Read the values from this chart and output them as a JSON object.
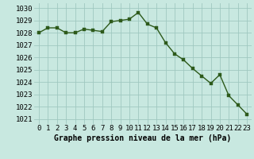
{
  "x": [
    0,
    1,
    2,
    3,
    4,
    5,
    6,
    7,
    8,
    9,
    10,
    11,
    12,
    13,
    14,
    15,
    16,
    17,
    18,
    19,
    20,
    21,
    22,
    23
  ],
  "y": [
    1028.0,
    1028.4,
    1028.4,
    1028.0,
    1028.0,
    1028.3,
    1028.2,
    1028.1,
    1028.9,
    1029.0,
    1029.1,
    1029.65,
    1028.7,
    1028.4,
    1027.2,
    1026.3,
    1025.8,
    1025.1,
    1024.5,
    1023.9,
    1024.6,
    1022.9,
    1022.15,
    1021.4
  ],
  "line_color": "#2d5a1b",
  "marker_color": "#2d5a1b",
  "bg_color": "#c8e8e0",
  "grid_color": "#a0c8c0",
  "ylabel_values": [
    1021,
    1022,
    1023,
    1024,
    1025,
    1026,
    1027,
    1028,
    1029,
    1030
  ],
  "xlabel": "Graphe pression niveau de la mer (hPa)",
  "ylim": [
    1020.6,
    1030.4
  ],
  "xlim": [
    -0.5,
    23.5
  ],
  "xlabel_fontsize": 7,
  "tick_fontsize": 6.5,
  "line_width": 1.0,
  "marker_size": 2.5
}
